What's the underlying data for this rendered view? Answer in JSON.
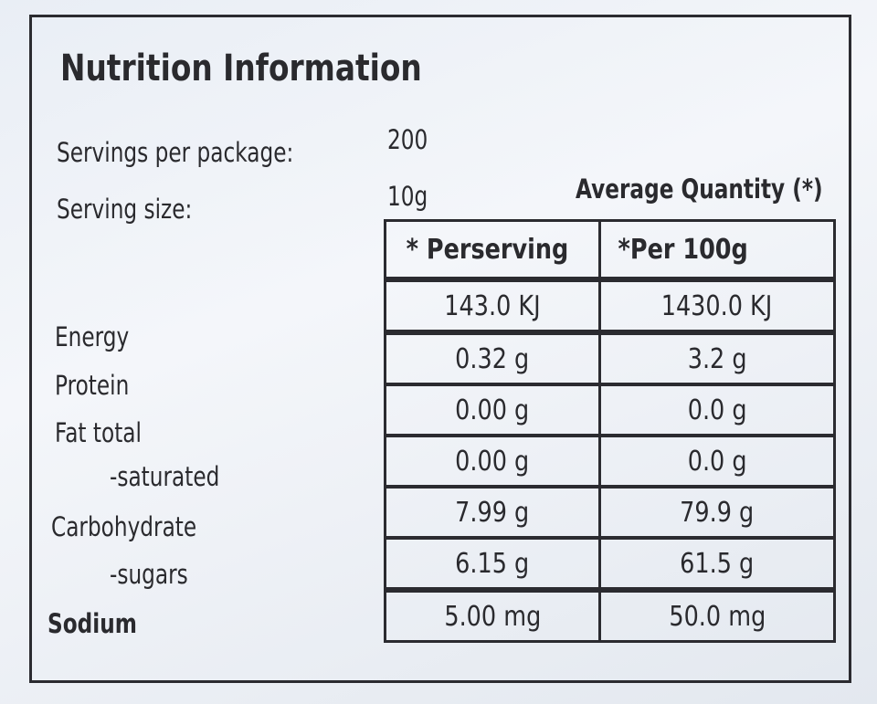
{
  "title": "Nutrition Information",
  "servings_per_package": {
    "label": "Servings per package:",
    "value": "200"
  },
  "serving_size": {
    "label": "Serving size:",
    "value": "10g"
  },
  "table": {
    "caption": "Average Quantity (*)",
    "columns": [
      "* Perserving",
      "*Per 100g"
    ],
    "rows": [
      {
        "label": "Energy",
        "values": [
          "143.0 KJ",
          "1430.0 KJ"
        ]
      },
      {
        "label": "Protein",
        "values": [
          "0.32 g",
          "3.2 g"
        ]
      },
      {
        "label": "Fat total",
        "values": [
          "0.00 g",
          "0.0 g"
        ]
      },
      {
        "label": "-saturated",
        "values": [
          "0.00 g",
          "0.0 g"
        ]
      },
      {
        "label": "Carbohydrate",
        "values": [
          "7.99 g",
          "79.9 g"
        ]
      },
      {
        "label": "-sugars",
        "values": [
          "6.15 g",
          "61.5 g"
        ]
      },
      {
        "label": "Sodium",
        "values": [
          "5.00 mg",
          "50.0 mg"
        ]
      }
    ]
  }
}
